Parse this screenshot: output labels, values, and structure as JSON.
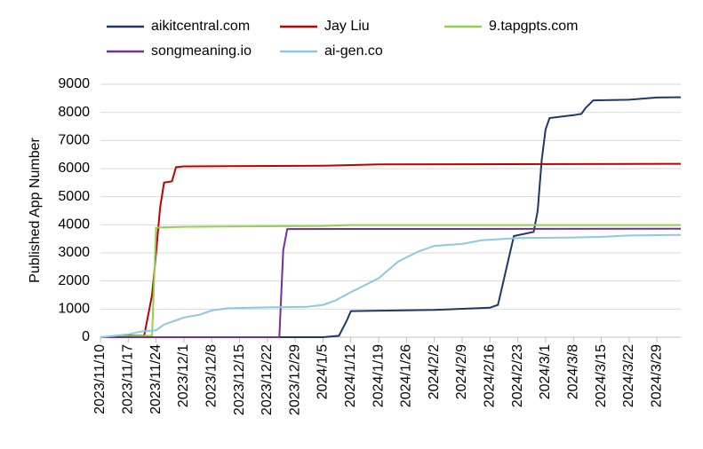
{
  "chart_data": {
    "type": "line",
    "y_label": "Published App Number",
    "ylim": [
      0,
      9000
    ],
    "yticks": [
      0,
      1000,
      2000,
      3000,
      4000,
      5000,
      6000,
      7000,
      8000,
      9000
    ],
    "grid": true,
    "xlim": [
      "2023/11/10",
      "2024/4/4"
    ],
    "xticks": [
      "2023/11/10",
      "2023/11/17",
      "2023/11/24",
      "2023/12/1",
      "2023/12/8",
      "2023/12/15",
      "2023/12/22",
      "2023/12/29",
      "2024/1/5",
      "2024/1/12",
      "2024/1/19",
      "2024/1/26",
      "2024/2/2",
      "2024/2/9",
      "2024/2/16",
      "2024/2/23",
      "2024/3/1",
      "2024/3/8",
      "2024/3/15",
      "2024/3/22",
      "2024/3/29"
    ],
    "series": [
      {
        "name": "aikitcentral.com",
        "color": "#203864",
        "x": [
          "2023/11/10",
          "2024/1/5",
          "2024/1/9",
          "2024/1/11",
          "2024/1/12",
          "2024/2/2",
          "2024/2/16",
          "2024/2/18",
          "2024/2/22",
          "2024/2/27",
          "2024/2/28",
          "2024/2/29",
          "2024/3/1",
          "2024/3/2",
          "2024/3/8",
          "2024/3/10",
          "2024/3/11",
          "2024/3/13",
          "2024/3/22",
          "2024/3/29",
          "2024/4/4"
        ],
        "values": [
          0,
          0,
          50,
          600,
          930,
          970,
          1050,
          1150,
          3600,
          3750,
          4500,
          6300,
          7400,
          7800,
          7900,
          7950,
          8150,
          8430,
          8450,
          8530,
          8540
        ]
      },
      {
        "name": "Jay Liu",
        "color": "#c00000",
        "x": [
          "2023/11/10",
          "2023/11/14",
          "2023/11/17",
          "2023/11/21",
          "2023/11/23",
          "2023/11/24",
          "2023/11/25",
          "2023/11/26",
          "2023/11/28",
          "2023/11/29",
          "2023/12/1",
          "2024/1/5",
          "2024/1/19",
          "2024/4/4"
        ],
        "values": [
          0,
          20,
          50,
          50,
          1500,
          3000,
          4600,
          5500,
          5550,
          6050,
          6080,
          6100,
          6150,
          6170
        ]
      },
      {
        "name": "9.tapgpts.com",
        "color": "#92d050",
        "x": [
          "2023/11/10",
          "2023/11/23",
          "2023/11/24",
          "2023/12/1",
          "2024/1/5",
          "2024/1/12",
          "2024/4/4"
        ],
        "values": [
          0,
          50,
          3900,
          3930,
          3960,
          3990,
          3990
        ]
      },
      {
        "name": "songmeaning.io",
        "color": "#7030a0",
        "x": [
          "2023/11/10",
          "2023/12/25",
          "2023/12/26",
          "2023/12/27",
          "2024/4/4"
        ],
        "values": [
          0,
          0,
          3100,
          3850,
          3860
        ]
      },
      {
        "name": "ai-gen.co",
        "color": "#8dc8e0",
        "x": [
          "2023/11/10",
          "2023/11/17",
          "2023/11/20",
          "2023/11/24",
          "2023/11/26",
          "2023/11/29",
          "2023/12/1",
          "2023/12/5",
          "2023/12/8",
          "2023/12/12",
          "2023/12/22",
          "2024/1/1",
          "2024/1/5",
          "2024/1/8",
          "2024/1/12",
          "2024/1/19",
          "2024/1/24",
          "2024/1/29",
          "2024/2/2",
          "2024/2/9",
          "2024/2/14",
          "2024/2/23",
          "2024/3/8",
          "2024/3/15",
          "2024/3/22",
          "2024/4/4"
        ],
        "values": [
          0,
          100,
          200,
          250,
          450,
          600,
          700,
          800,
          950,
          1030,
          1060,
          1080,
          1150,
          1300,
          1600,
          2100,
          2700,
          3050,
          3250,
          3320,
          3450,
          3530,
          3550,
          3570,
          3620,
          3640
        ]
      }
    ]
  }
}
